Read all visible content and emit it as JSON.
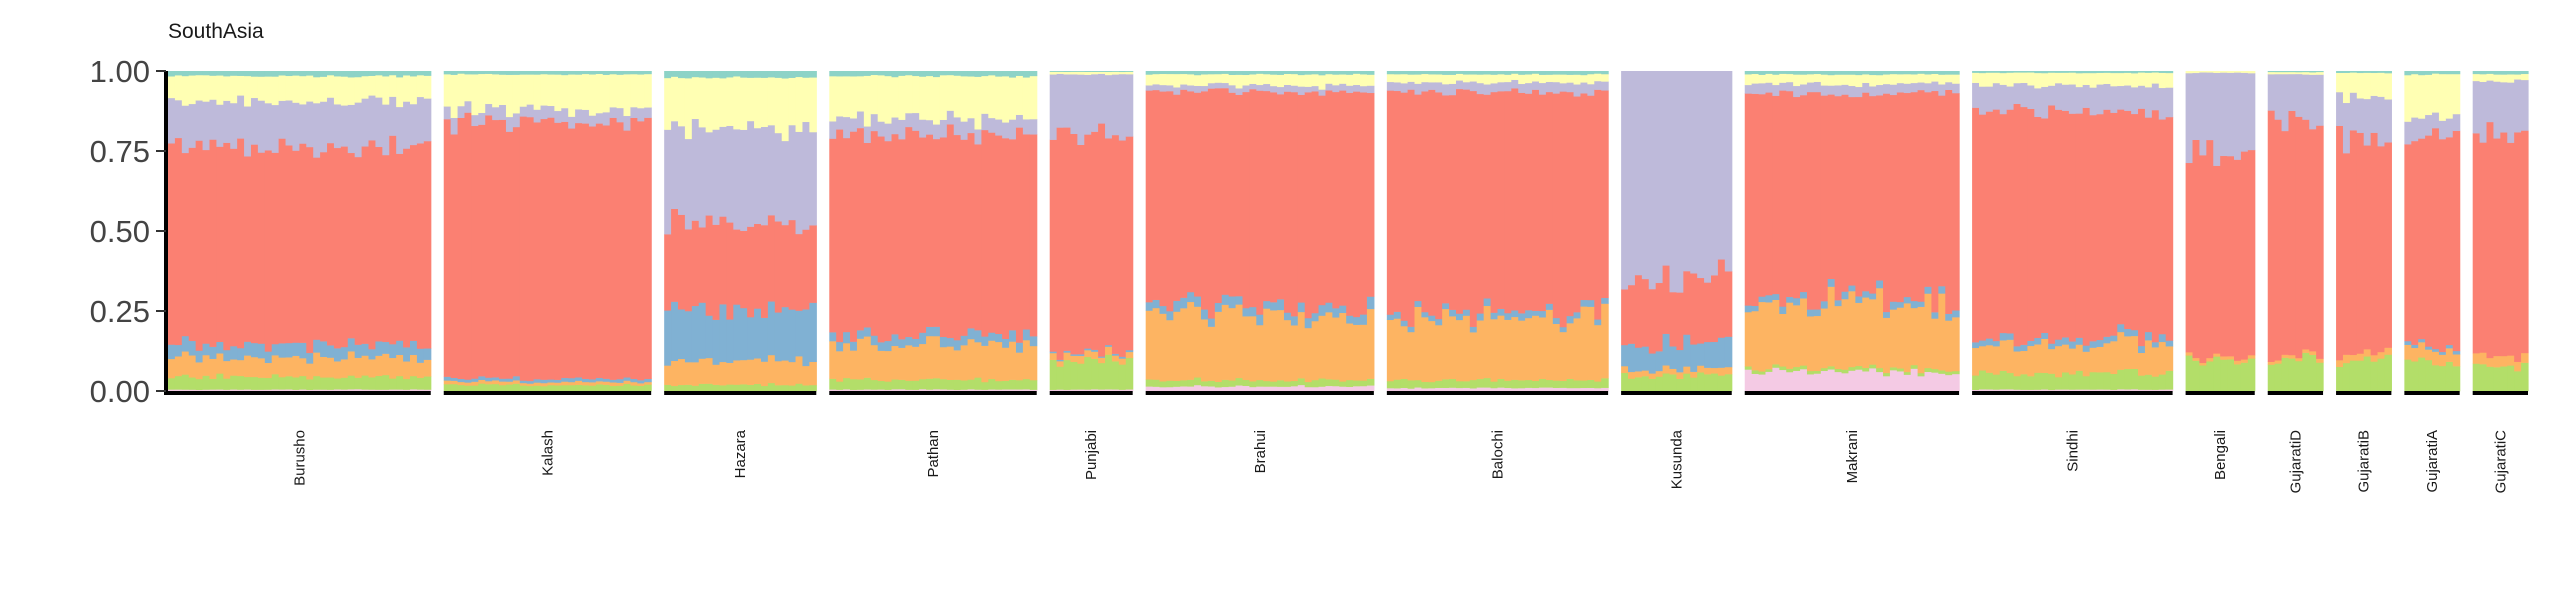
{
  "chart_data": {
    "type": "bar",
    "subtype": "stacked-proportion (admixture)",
    "title": "SouthAsia",
    "xlabel": "",
    "ylabel": "",
    "ylim": [
      0,
      1
    ],
    "yticks": [
      "0.00",
      "0.25",
      "0.50",
      "0.75",
      "1.00"
    ],
    "grid": false,
    "legend": "none",
    "components": [
      {
        "color": "#f4cae4",
        "label": ""
      },
      {
        "color": "#b3de69",
        "label": ""
      },
      {
        "color": "#fdb462",
        "label": ""
      },
      {
        "color": "#80b1d3",
        "label": ""
      },
      {
        "color": "#fb8072",
        "label": ""
      },
      {
        "color": "#bebada",
        "label": ""
      },
      {
        "color": "#ffffb3",
        "label": ""
      },
      {
        "color": "#8dd3c7",
        "label": ""
      }
    ],
    "populations": [
      {
        "name": "Burusho",
        "n": 38,
        "mean": [
          0.005,
          0.04,
          0.06,
          0.04,
          0.62,
          0.14,
          0.08,
          0.015
        ]
      },
      {
        "name": "Kalash",
        "n": 30,
        "mean": [
          0.0,
          0.02,
          0.01,
          0.01,
          0.8,
          0.04,
          0.11,
          0.01
        ]
      },
      {
        "name": "Hazara",
        "n": 22,
        "mean": [
          0.0,
          0.02,
          0.07,
          0.16,
          0.27,
          0.3,
          0.16,
          0.02
        ]
      },
      {
        "name": "Pathan",
        "n": 30,
        "mean": [
          0.005,
          0.03,
          0.11,
          0.03,
          0.63,
          0.05,
          0.13,
          0.015
        ]
      },
      {
        "name": "Punjabi",
        "n": 12,
        "mean": [
          0.005,
          0.09,
          0.02,
          0.005,
          0.69,
          0.18,
          0.008,
          0.002
        ]
      },
      {
        "name": "Brahui",
        "n": 33,
        "mean": [
          0.015,
          0.02,
          0.21,
          0.03,
          0.66,
          0.02,
          0.035,
          0.01
        ]
      },
      {
        "name": "Balochi",
        "n": 32,
        "mean": [
          0.01,
          0.025,
          0.19,
          0.02,
          0.69,
          0.03,
          0.025,
          0.01
        ]
      },
      {
        "name": "Kusunda",
        "n": 16,
        "mean": [
          0.0,
          0.05,
          0.02,
          0.08,
          0.2,
          0.65,
          0.0,
          0.0
        ]
      },
      {
        "name": "Makrani",
        "n": 31,
        "mean": [
          0.06,
          0.01,
          0.2,
          0.02,
          0.64,
          0.03,
          0.03,
          0.01
        ]
      },
      {
        "name": "Sindhi",
        "n": 29,
        "mean": [
          0.005,
          0.05,
          0.09,
          0.02,
          0.71,
          0.08,
          0.04,
          0.005
        ]
      },
      {
        "name": "Bengali",
        "n": 10,
        "mean": [
          0.0,
          0.1,
          0.01,
          0.0,
          0.64,
          0.245,
          0.005,
          0.0
        ]
      },
      {
        "name": "GujaratiD",
        "n": 8,
        "mean": [
          0.0,
          0.1,
          0.01,
          0.0,
          0.74,
          0.14,
          0.007,
          0.003
        ]
      },
      {
        "name": "GujaratiB",
        "n": 8,
        "mean": [
          0.0,
          0.09,
          0.02,
          0.0,
          0.68,
          0.13,
          0.075,
          0.005
        ]
      },
      {
        "name": "GujaratiA",
        "n": 8,
        "mean": [
          0.0,
          0.09,
          0.04,
          0.01,
          0.66,
          0.06,
          0.13,
          0.01
        ]
      },
      {
        "name": "GujaratiC",
        "n": 8,
        "mean": [
          0.0,
          0.08,
          0.03,
          0.0,
          0.7,
          0.16,
          0.02,
          0.01
        ]
      }
    ]
  }
}
